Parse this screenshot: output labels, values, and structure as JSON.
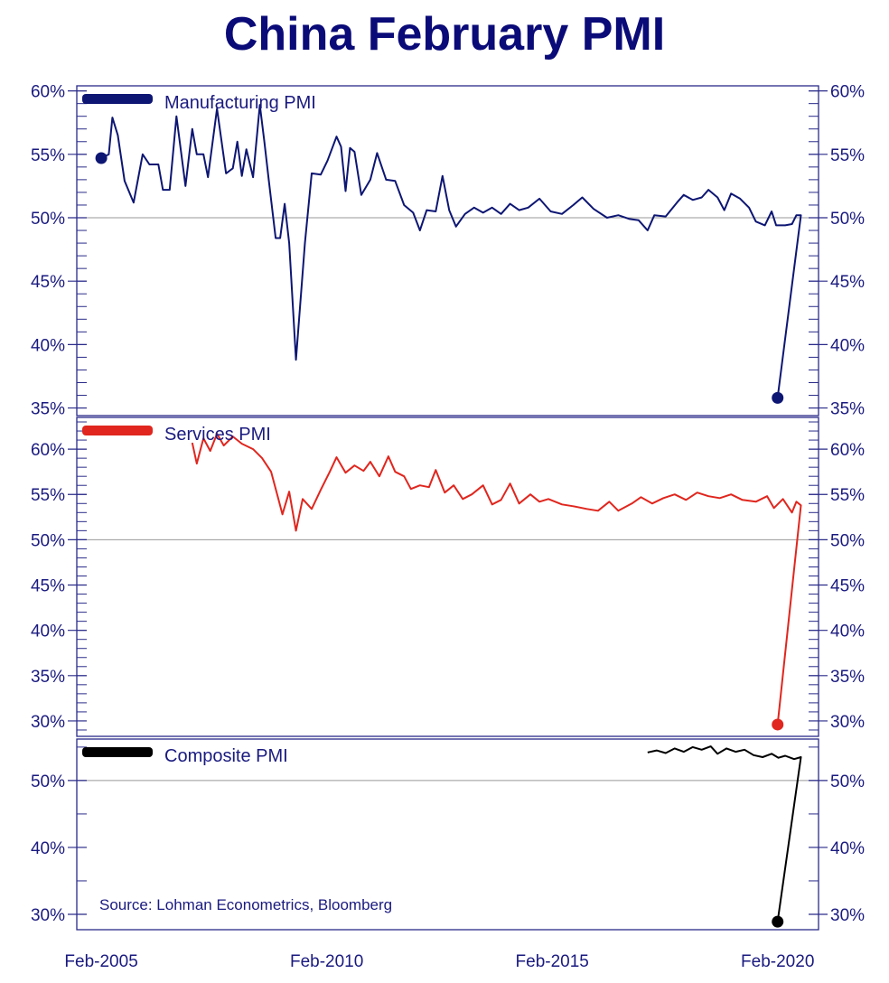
{
  "chart_data": {
    "type": "line",
    "title": "China February PMI",
    "source": "Source: Lohman Econometrics, Bloomberg",
    "x_ticks": [
      {
        "x": 2005.083,
        "label": "Feb-2005"
      },
      {
        "x": 2010.083,
        "label": "Feb-2010"
      },
      {
        "x": 2015.083,
        "label": "Feb-2015"
      },
      {
        "x": 2020.083,
        "label": "Feb-2020"
      }
    ],
    "xlim": [
      2004.54,
      2020.99
    ],
    "reference_line": 50,
    "panels": [
      {
        "name": "Manufacturing PMI",
        "color": "#0d1673",
        "ylim": [
          34.4,
          60.4
        ],
        "y_ticks": [
          35,
          40,
          45,
          50,
          55,
          60
        ],
        "tick_labels": [
          "35%",
          "40%",
          "45%",
          "50%",
          "55%",
          "60%"
        ],
        "minor_step": 1,
        "dots": [
          [
            2005.083,
            54.7
          ],
          [
            2020.083,
            35.8
          ]
        ],
        "points": [
          [
            2005.083,
            54.7
          ],
          [
            2005.25,
            55.0
          ],
          [
            2005.33,
            57.9
          ],
          [
            2005.45,
            56.5
          ],
          [
            2005.6,
            52.9
          ],
          [
            2005.8,
            51.2
          ],
          [
            2006.0,
            55.0
          ],
          [
            2006.15,
            54.2
          ],
          [
            2006.35,
            54.2
          ],
          [
            2006.45,
            52.2
          ],
          [
            2006.6,
            52.2
          ],
          [
            2006.75,
            58.0
          ],
          [
            2006.95,
            52.5
          ],
          [
            2007.1,
            57.0
          ],
          [
            2007.2,
            55.0
          ],
          [
            2007.35,
            55.0
          ],
          [
            2007.45,
            53.2
          ],
          [
            2007.65,
            58.6
          ],
          [
            2007.85,
            53.5
          ],
          [
            2008.0,
            53.9
          ],
          [
            2008.1,
            56.0
          ],
          [
            2008.2,
            53.3
          ],
          [
            2008.3,
            55.4
          ],
          [
            2008.45,
            53.2
          ],
          [
            2008.6,
            58.9
          ],
          [
            2008.7,
            56.0
          ],
          [
            2008.8,
            52.9
          ],
          [
            2008.95,
            48.4
          ],
          [
            2009.05,
            48.4
          ],
          [
            2009.15,
            51.1
          ],
          [
            2009.25,
            48.0
          ],
          [
            2009.4,
            38.8
          ],
          [
            2009.6,
            48.0
          ],
          [
            2009.75,
            53.5
          ],
          [
            2009.95,
            53.4
          ],
          [
            2010.1,
            54.5
          ],
          [
            2010.3,
            56.4
          ],
          [
            2010.4,
            55.6
          ],
          [
            2010.5,
            52.1
          ],
          [
            2010.6,
            55.5
          ],
          [
            2010.7,
            55.2
          ],
          [
            2010.85,
            51.8
          ],
          [
            2011.05,
            53.0
          ],
          [
            2011.2,
            55.1
          ],
          [
            2011.4,
            53.0
          ],
          [
            2011.6,
            52.9
          ],
          [
            2011.8,
            51.0
          ],
          [
            2012.0,
            50.4
          ],
          [
            2012.15,
            49.0
          ],
          [
            2012.3,
            50.6
          ],
          [
            2012.5,
            50.5
          ],
          [
            2012.65,
            53.3
          ],
          [
            2012.8,
            50.6
          ],
          [
            2012.95,
            49.3
          ],
          [
            2013.15,
            50.3
          ],
          [
            2013.35,
            50.8
          ],
          [
            2013.55,
            50.4
          ],
          [
            2013.75,
            50.8
          ],
          [
            2013.95,
            50.3
          ],
          [
            2014.15,
            51.1
          ],
          [
            2014.35,
            50.6
          ],
          [
            2014.55,
            50.8
          ],
          [
            2014.8,
            51.5
          ],
          [
            2015.05,
            50.5
          ],
          [
            2015.3,
            50.3
          ],
          [
            2015.55,
            51.0
          ],
          [
            2015.75,
            51.6
          ],
          [
            2016.0,
            50.7
          ],
          [
            2016.3,
            50.0
          ],
          [
            2016.55,
            50.2
          ],
          [
            2016.8,
            49.9
          ],
          [
            2017.0,
            49.8
          ],
          [
            2017.2,
            49.0
          ],
          [
            2017.35,
            50.2
          ],
          [
            2017.6,
            50.1
          ],
          [
            2017.85,
            51.2
          ],
          [
            2018.0,
            51.8
          ],
          [
            2018.2,
            51.4
          ],
          [
            2018.4,
            51.6
          ],
          [
            2018.55,
            52.2
          ],
          [
            2018.75,
            51.6
          ],
          [
            2018.9,
            50.6
          ],
          [
            2019.05,
            51.9
          ],
          [
            2019.25,
            51.5
          ],
          [
            2019.45,
            50.8
          ],
          [
            2019.6,
            49.7
          ],
          [
            2019.8,
            49.4
          ],
          [
            2019.95,
            50.5
          ],
          [
            2020.05,
            49.4
          ],
          [
            2020.25,
            49.4
          ],
          [
            2020.4,
            49.5
          ],
          [
            2020.5,
            50.2
          ],
          [
            2020.6,
            50.2
          ],
          [
            2020.083,
            35.8
          ]
        ]
      },
      {
        "name": "Services PMI",
        "color": "#e0261e",
        "ylim": [
          28.3,
          63.5
        ],
        "y_ticks": [
          30,
          35,
          40,
          45,
          50,
          55,
          60
        ],
        "tick_labels": [
          "30%",
          "35%",
          "40%",
          "45%",
          "50%",
          "55%",
          "60%"
        ],
        "minor_step": 1,
        "dots": [
          [
            2020.083,
            29.6
          ]
        ],
        "points": [
          [
            2007.1,
            60.7
          ],
          [
            2007.2,
            58.4
          ],
          [
            2007.35,
            61.2
          ],
          [
            2007.5,
            59.8
          ],
          [
            2007.65,
            61.7
          ],
          [
            2007.8,
            60.4
          ],
          [
            2008.0,
            61.4
          ],
          [
            2008.2,
            60.6
          ],
          [
            2008.45,
            60.0
          ],
          [
            2008.65,
            59.0
          ],
          [
            2008.85,
            57.5
          ],
          [
            2009.0,
            54.7
          ],
          [
            2009.1,
            52.8
          ],
          [
            2009.25,
            55.3
          ],
          [
            2009.4,
            51.0
          ],
          [
            2009.55,
            54.5
          ],
          [
            2009.75,
            53.4
          ],
          [
            2009.95,
            55.5
          ],
          [
            2010.15,
            57.5
          ],
          [
            2010.3,
            59.1
          ],
          [
            2010.5,
            57.4
          ],
          [
            2010.7,
            58.2
          ],
          [
            2010.9,
            57.6
          ],
          [
            2011.05,
            58.6
          ],
          [
            2011.25,
            57.0
          ],
          [
            2011.45,
            59.2
          ],
          [
            2011.6,
            57.5
          ],
          [
            2011.8,
            57.0
          ],
          [
            2011.95,
            55.6
          ],
          [
            2012.15,
            56.0
          ],
          [
            2012.35,
            55.8
          ],
          [
            2012.5,
            57.7
          ],
          [
            2012.7,
            55.2
          ],
          [
            2012.9,
            56.0
          ],
          [
            2013.1,
            54.5
          ],
          [
            2013.3,
            55.0
          ],
          [
            2013.55,
            56.0
          ],
          [
            2013.75,
            53.9
          ],
          [
            2013.95,
            54.4
          ],
          [
            2014.15,
            56.2
          ],
          [
            2014.35,
            54.0
          ],
          [
            2014.6,
            55.0
          ],
          [
            2014.8,
            54.2
          ],
          [
            2015.0,
            54.5
          ],
          [
            2015.3,
            53.9
          ],
          [
            2015.55,
            53.7
          ],
          [
            2015.85,
            53.4
          ],
          [
            2016.1,
            53.2
          ],
          [
            2016.35,
            54.2
          ],
          [
            2016.55,
            53.2
          ],
          [
            2016.85,
            54.0
          ],
          [
            2017.05,
            54.7
          ],
          [
            2017.3,
            54.0
          ],
          [
            2017.55,
            54.6
          ],
          [
            2017.8,
            55.0
          ],
          [
            2018.05,
            54.4
          ],
          [
            2018.3,
            55.2
          ],
          [
            2018.55,
            54.8
          ],
          [
            2018.8,
            54.6
          ],
          [
            2019.05,
            55.0
          ],
          [
            2019.3,
            54.4
          ],
          [
            2019.6,
            54.2
          ],
          [
            2019.85,
            54.8
          ],
          [
            2020.0,
            53.5
          ],
          [
            2020.2,
            54.5
          ],
          [
            2020.4,
            53.0
          ],
          [
            2020.5,
            54.2
          ],
          [
            2020.6,
            53.8
          ],
          [
            2020.083,
            29.6
          ]
        ]
      },
      {
        "name": "Composite PMI",
        "color": "#000000",
        "ylim": [
          27.7,
          56.2
        ],
        "y_ticks": [
          30,
          40,
          50
        ],
        "tick_labels": [
          "30%",
          "40%",
          "50%"
        ],
        "minor_step": 5,
        "dots": [
          [
            2020.083,
            28.9
          ]
        ],
        "points": [
          [
            2017.2,
            54.2
          ],
          [
            2017.4,
            54.5
          ],
          [
            2017.6,
            54.1
          ],
          [
            2017.8,
            54.8
          ],
          [
            2018.0,
            54.3
          ],
          [
            2018.2,
            55.0
          ],
          [
            2018.4,
            54.6
          ],
          [
            2018.6,
            55.1
          ],
          [
            2018.75,
            54.0
          ],
          [
            2018.95,
            54.8
          ],
          [
            2019.15,
            54.3
          ],
          [
            2019.35,
            54.6
          ],
          [
            2019.55,
            53.8
          ],
          [
            2019.75,
            53.5
          ],
          [
            2019.95,
            54.0
          ],
          [
            2020.1,
            53.4
          ],
          [
            2020.25,
            53.7
          ],
          [
            2020.45,
            53.2
          ],
          [
            2020.6,
            53.5
          ],
          [
            2020.083,
            28.9
          ]
        ]
      }
    ]
  }
}
